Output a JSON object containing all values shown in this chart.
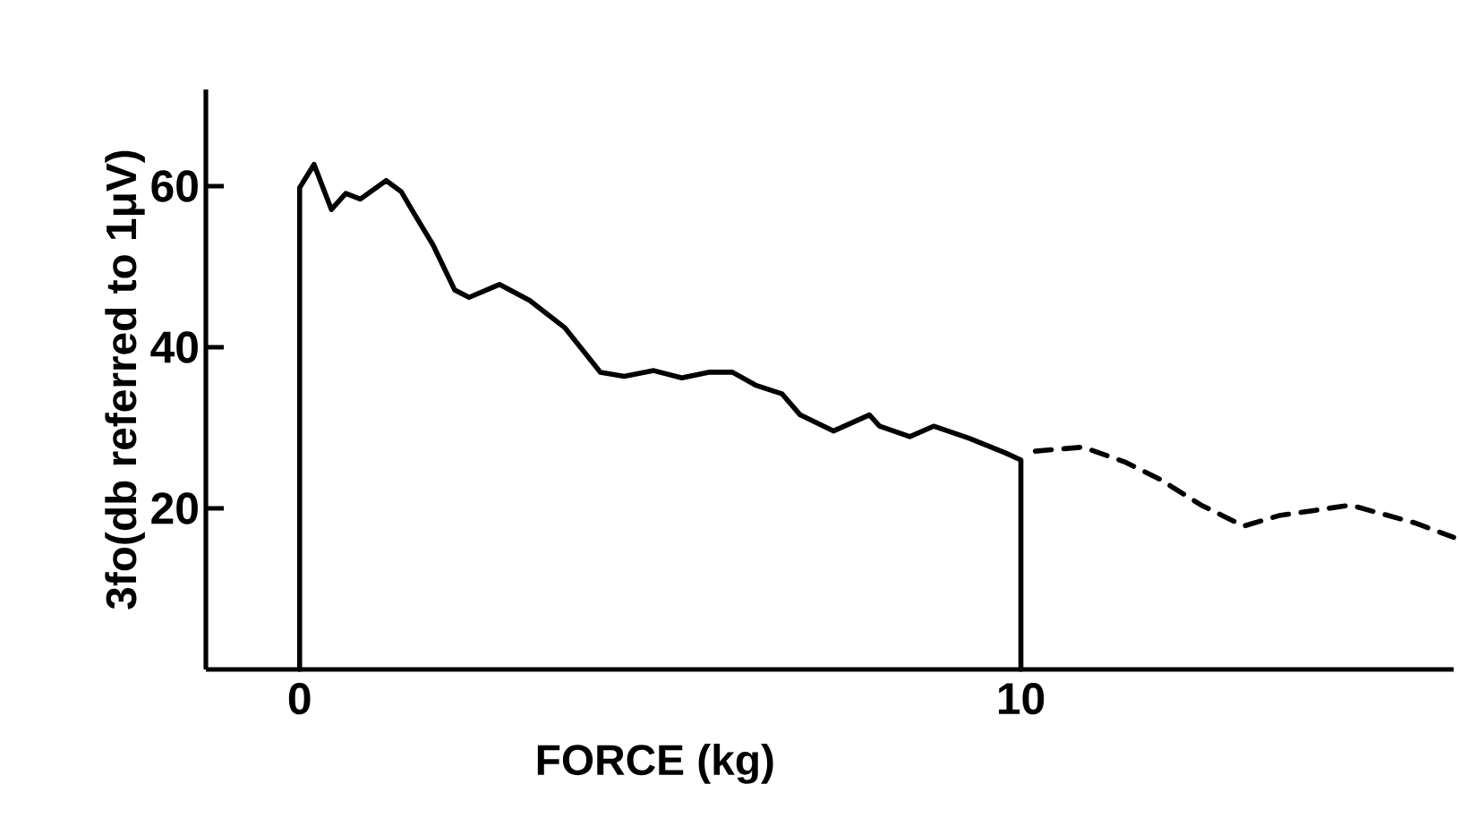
{
  "chart_data": {
    "type": "line",
    "xlabel": "FORCE (kg)",
    "ylabel": "3fo(db referred to 1μV)",
    "xlim": [
      -1.3,
      16
    ],
    "ylim": [
      0,
      72
    ],
    "xticks": [
      0,
      10
    ],
    "yticks": [
      20,
      40,
      60
    ],
    "marker": "none",
    "series": [
      {
        "color": "#000000",
        "line_style": "solid",
        "x": [
          0,
          0,
          0.2,
          0.44,
          0.64,
          0.84,
          1.2,
          1.41,
          1.6,
          1.85,
          2.15,
          2.35,
          2.77,
          3.19,
          3.68,
          4.17,
          4.5,
          4.91,
          5.3,
          5.67,
          6.0,
          6.32,
          6.69,
          6.94,
          7.4,
          7.9,
          8.04,
          8.46,
          8.79,
          9.28,
          9.78,
          10,
          10
        ],
        "values": [
          0,
          59.8,
          62.7,
          57.1,
          59.1,
          58.4,
          60.7,
          59.3,
          56.4,
          52.7,
          47.1,
          46.2,
          47.8,
          45.8,
          42.4,
          36.9,
          36.4,
          37.1,
          36.2,
          36.9,
          36.9,
          35.3,
          34.2,
          31.6,
          29.6,
          31.6,
          30.2,
          28.9,
          30.2,
          28.7,
          26.9,
          26,
          0
        ]
      },
      {
        "color": "#000000",
        "line_style": "dashed",
        "x": [
          10.2,
          10.86,
          11.43,
          11.93,
          12.5,
          13.09,
          13.58,
          14.57,
          15.46,
          16
        ],
        "values": [
          27.1,
          27.6,
          25.8,
          23.6,
          20.4,
          17.8,
          19.1,
          20.4,
          18.2,
          16.4
        ]
      }
    ]
  }
}
